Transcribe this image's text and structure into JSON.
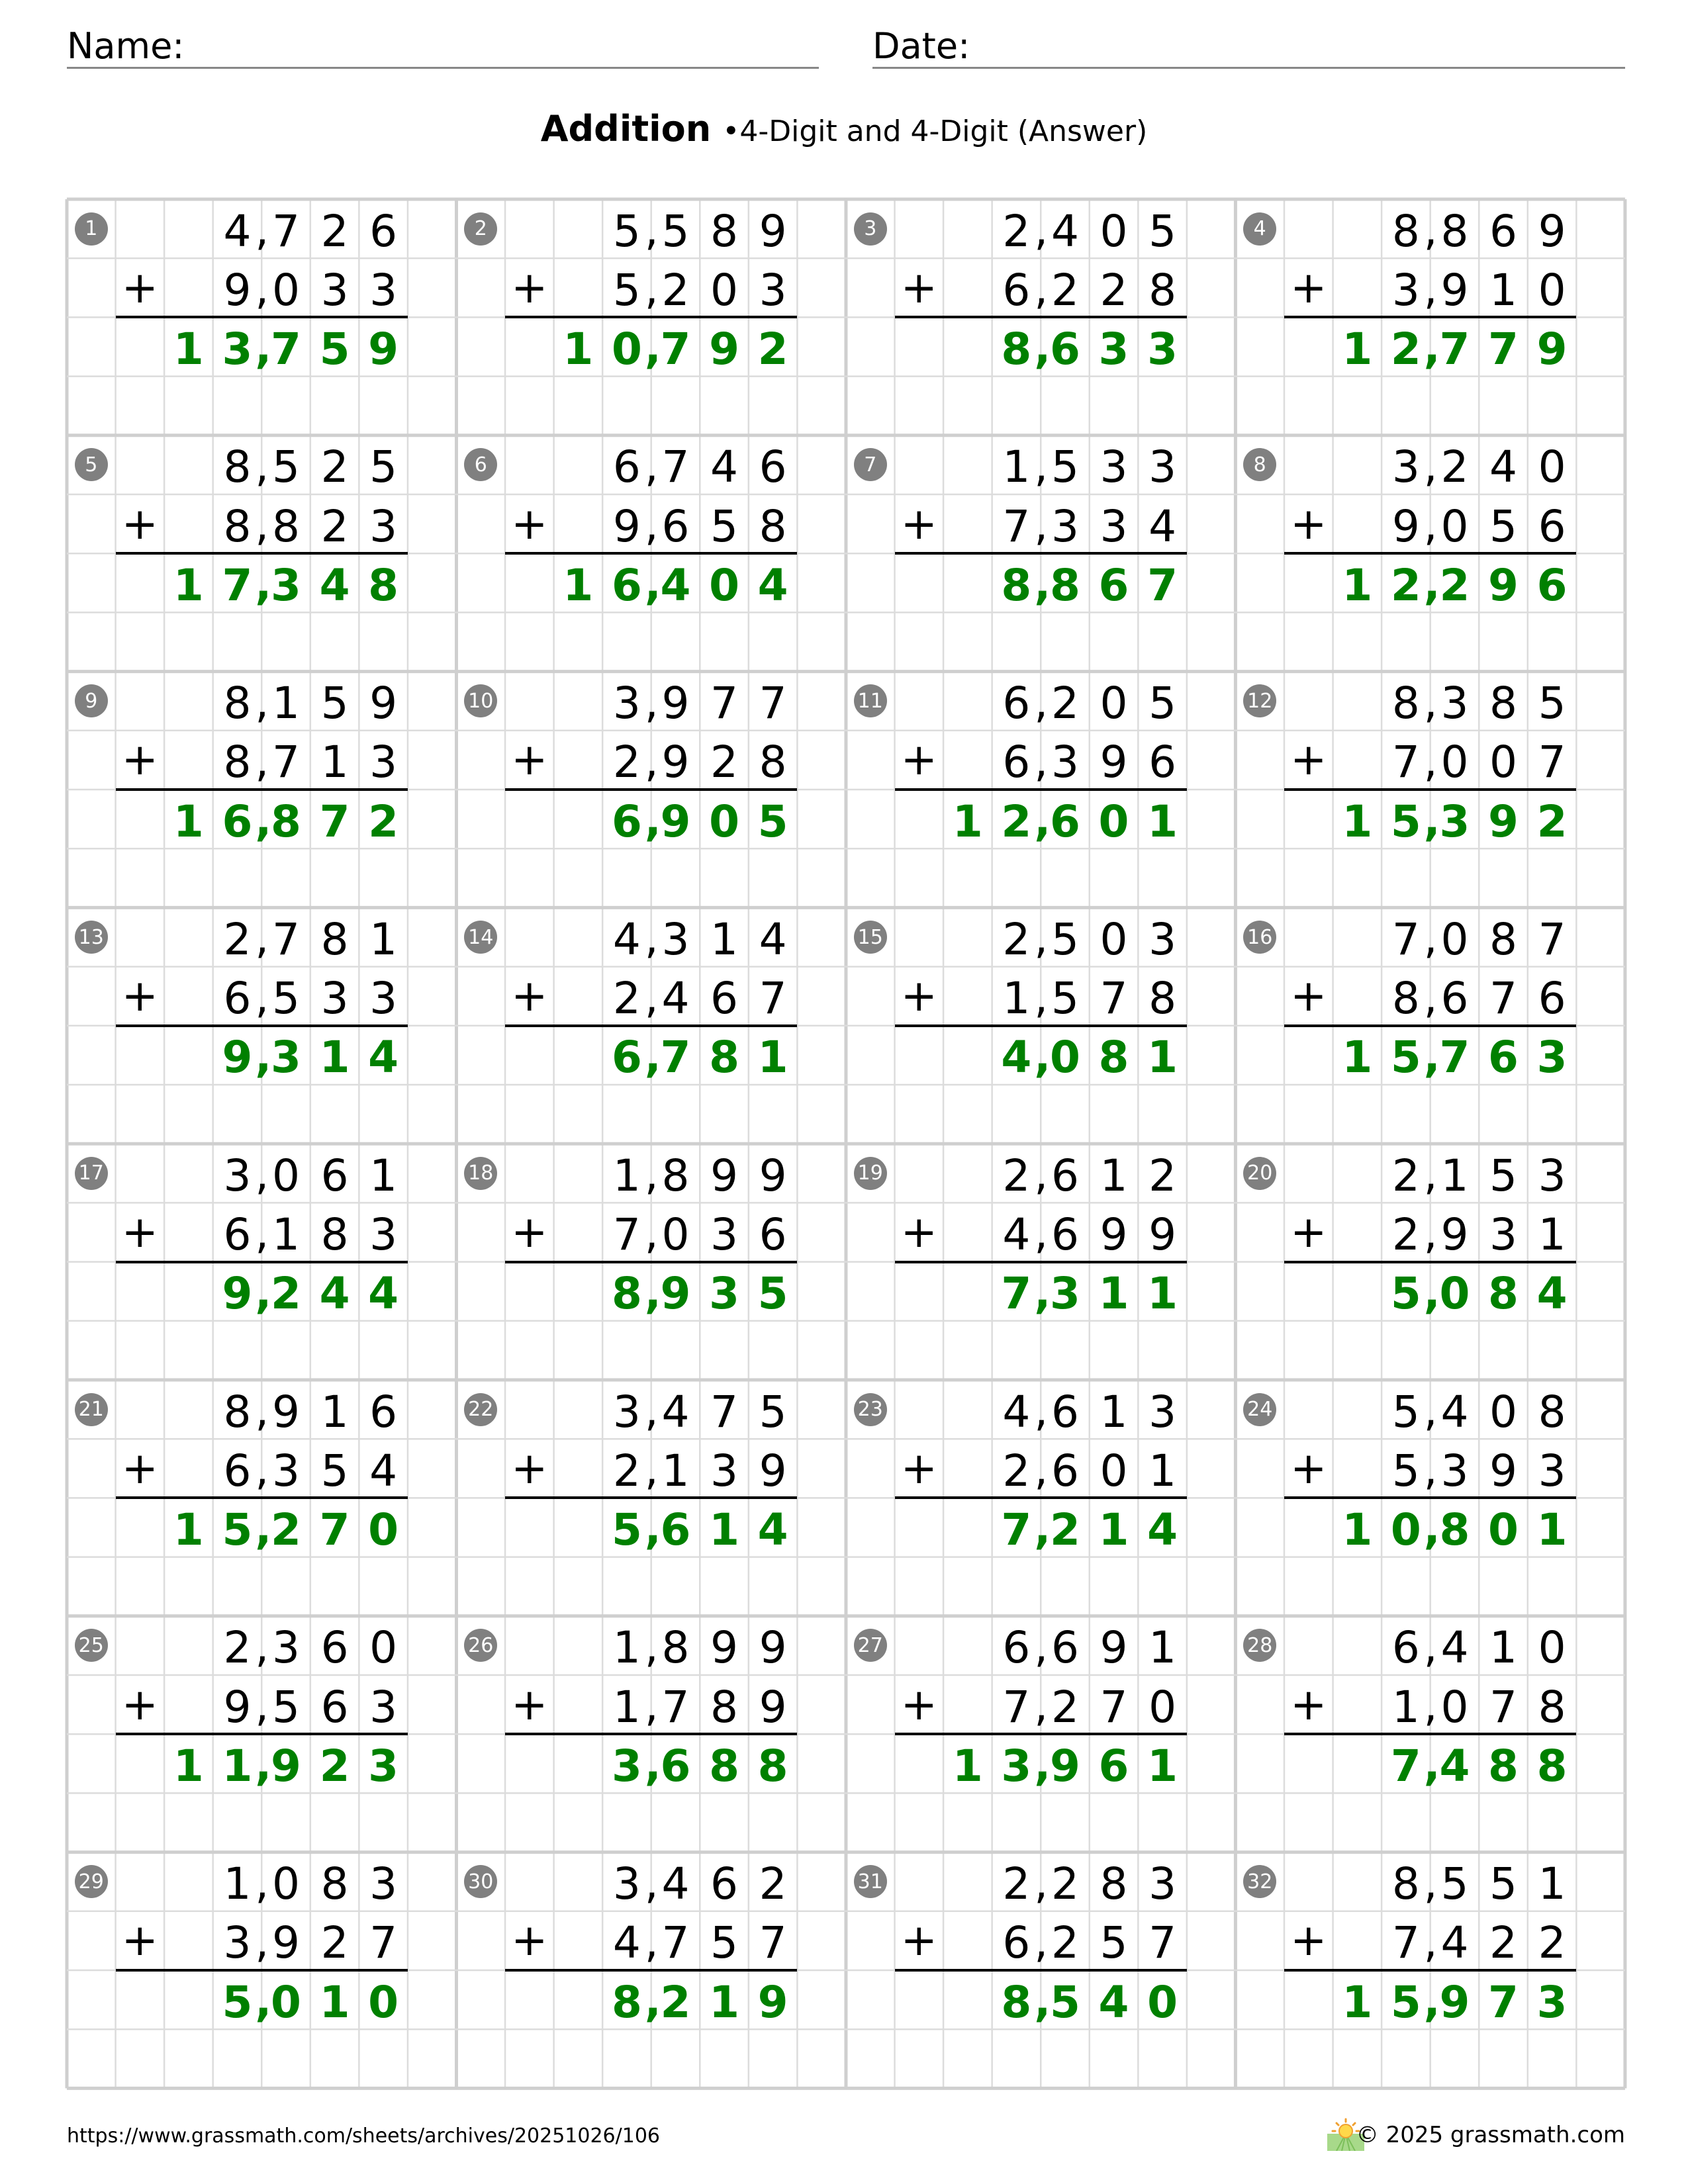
{
  "header": {
    "name_label": "Name:",
    "date_label": "Date:"
  },
  "title": {
    "main": "Addition",
    "separator": "•",
    "subtitle": "4-Digit and 4-Digit (Answer)"
  },
  "colors": {
    "answer": "#008000",
    "badge": "#808080",
    "grid": "#d3d3d3"
  },
  "operator": "+",
  "problems": [
    {
      "n": "1",
      "a": "4,726",
      "b": "9,033",
      "answer": "13,759"
    },
    {
      "n": "2",
      "a": "5,589",
      "b": "5,203",
      "answer": "10,792"
    },
    {
      "n": "3",
      "a": "2,405",
      "b": "6,228",
      "answer": "8,633"
    },
    {
      "n": "4",
      "a": "8,869",
      "b": "3,910",
      "answer": "12,779"
    },
    {
      "n": "5",
      "a": "8,525",
      "b": "8,823",
      "answer": "17,348"
    },
    {
      "n": "6",
      "a": "6,746",
      "b": "9,658",
      "answer": "16,404"
    },
    {
      "n": "7",
      "a": "1,533",
      "b": "7,334",
      "answer": "8,867"
    },
    {
      "n": "8",
      "a": "3,240",
      "b": "9,056",
      "answer": "12,296"
    },
    {
      "n": "9",
      "a": "8,159",
      "b": "8,713",
      "answer": "16,872"
    },
    {
      "n": "10",
      "a": "3,977",
      "b": "2,928",
      "answer": "6,905"
    },
    {
      "n": "11",
      "a": "6,205",
      "b": "6,396",
      "answer": "12,601"
    },
    {
      "n": "12",
      "a": "8,385",
      "b": "7,007",
      "answer": "15,392"
    },
    {
      "n": "13",
      "a": "2,781",
      "b": "6,533",
      "answer": "9,314"
    },
    {
      "n": "14",
      "a": "4,314",
      "b": "2,467",
      "answer": "6,781"
    },
    {
      "n": "15",
      "a": "2,503",
      "b": "1,578",
      "answer": "4,081"
    },
    {
      "n": "16",
      "a": "7,087",
      "b": "8,676",
      "answer": "15,763"
    },
    {
      "n": "17",
      "a": "3,061",
      "b": "6,183",
      "answer": "9,244"
    },
    {
      "n": "18",
      "a": "1,899",
      "b": "7,036",
      "answer": "8,935"
    },
    {
      "n": "19",
      "a": "2,612",
      "b": "4,699",
      "answer": "7,311"
    },
    {
      "n": "20",
      "a": "2,153",
      "b": "2,931",
      "answer": "5,084"
    },
    {
      "n": "21",
      "a": "8,916",
      "b": "6,354",
      "answer": "15,270"
    },
    {
      "n": "22",
      "a": "3,475",
      "b": "2,139",
      "answer": "5,614"
    },
    {
      "n": "23",
      "a": "4,613",
      "b": "2,601",
      "answer": "7,214"
    },
    {
      "n": "24",
      "a": "5,408",
      "b": "5,393",
      "answer": "10,801"
    },
    {
      "n": "25",
      "a": "2,360",
      "b": "9,563",
      "answer": "11,923"
    },
    {
      "n": "26",
      "a": "1,899",
      "b": "1,789",
      "answer": "3,688"
    },
    {
      "n": "27",
      "a": "6,691",
      "b": "7,270",
      "answer": "13,961"
    },
    {
      "n": "28",
      "a": "6,410",
      "b": "1,078",
      "answer": "7,488"
    },
    {
      "n": "29",
      "a": "1,083",
      "b": "3,927",
      "answer": "5,010"
    },
    {
      "n": "30",
      "a": "3,462",
      "b": "4,757",
      "answer": "8,219"
    },
    {
      "n": "31",
      "a": "2,283",
      "b": "6,257",
      "answer": "8,540"
    },
    {
      "n": "32",
      "a": "8,551",
      "b": "7,422",
      "answer": "15,973"
    }
  ],
  "footer": {
    "url": "https://www.grassmath.com/sheets/archives/20251026/106",
    "copyright": "© 2025 grassmath.com",
    "logo_icon": "sun-over-grass-icon"
  }
}
